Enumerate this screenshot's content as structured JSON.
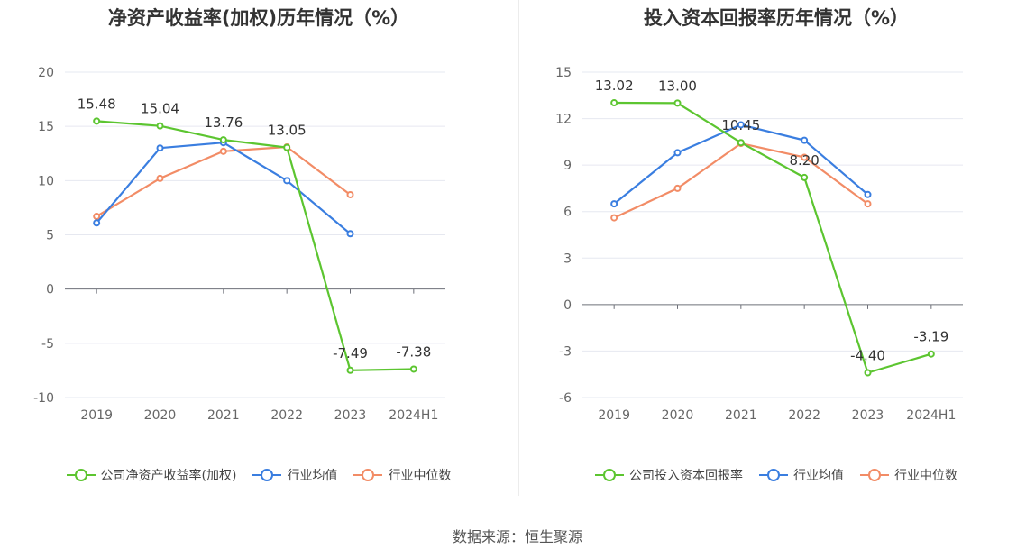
{
  "colors": {
    "company": "#5cc530",
    "industry_avg": "#3a7ee0",
    "industry_median": "#f28c66",
    "grid": "#e6e8f0",
    "axis": "#6e7079",
    "label": "#666666"
  },
  "source_text": "数据来源：恒生聚源",
  "chart_data": [
    {
      "type": "line",
      "title": "净资产收益率(加权)历年情况（%）",
      "categories": [
        "2019",
        "2020",
        "2021",
        "2022",
        "2023",
        "2024H1"
      ],
      "ylim": [
        -10,
        20
      ],
      "yticks": [
        20,
        15,
        10,
        5,
        0,
        -5,
        -10
      ],
      "grid": true,
      "legend_position": "bottom",
      "series": [
        {
          "name": "公司净资产收益率(加权)",
          "color_key": "company",
          "values": [
            15.48,
            15.04,
            13.76,
            13.05,
            -7.49,
            -7.38
          ],
          "labels": [
            "15.48",
            "15.04",
            "13.76",
            "13.05",
            "-7.49",
            "-7.38"
          ]
        },
        {
          "name": "行业均值",
          "color_key": "industry_avg",
          "values": [
            6.1,
            13.0,
            13.5,
            10.0,
            5.1,
            null
          ]
        },
        {
          "name": "行业中位数",
          "color_key": "industry_median",
          "values": [
            6.7,
            10.2,
            12.7,
            13.1,
            8.7,
            null
          ]
        }
      ]
    },
    {
      "type": "line",
      "title": "投入资本回报率历年情况（%）",
      "categories": [
        "2019",
        "2020",
        "2021",
        "2022",
        "2023",
        "2024H1"
      ],
      "ylim": [
        -6,
        15
      ],
      "yticks": [
        15,
        12,
        9,
        6,
        3,
        0,
        -3,
        -6
      ],
      "grid": true,
      "legend_position": "bottom",
      "series": [
        {
          "name": "公司投入资本回报率",
          "color_key": "company",
          "values": [
            13.02,
            13.0,
            10.45,
            8.2,
            -4.4,
            -3.19
          ],
          "labels": [
            "13.02",
            "13.00",
            "10.45",
            "8.20",
            "-4.40",
            "-3.19"
          ]
        },
        {
          "name": "行业均值",
          "color_key": "industry_avg",
          "values": [
            6.5,
            9.8,
            11.6,
            10.6,
            7.1,
            null
          ]
        },
        {
          "name": "行业中位数",
          "color_key": "industry_median",
          "values": [
            5.6,
            7.5,
            10.4,
            9.5,
            6.5,
            null
          ]
        }
      ]
    }
  ]
}
